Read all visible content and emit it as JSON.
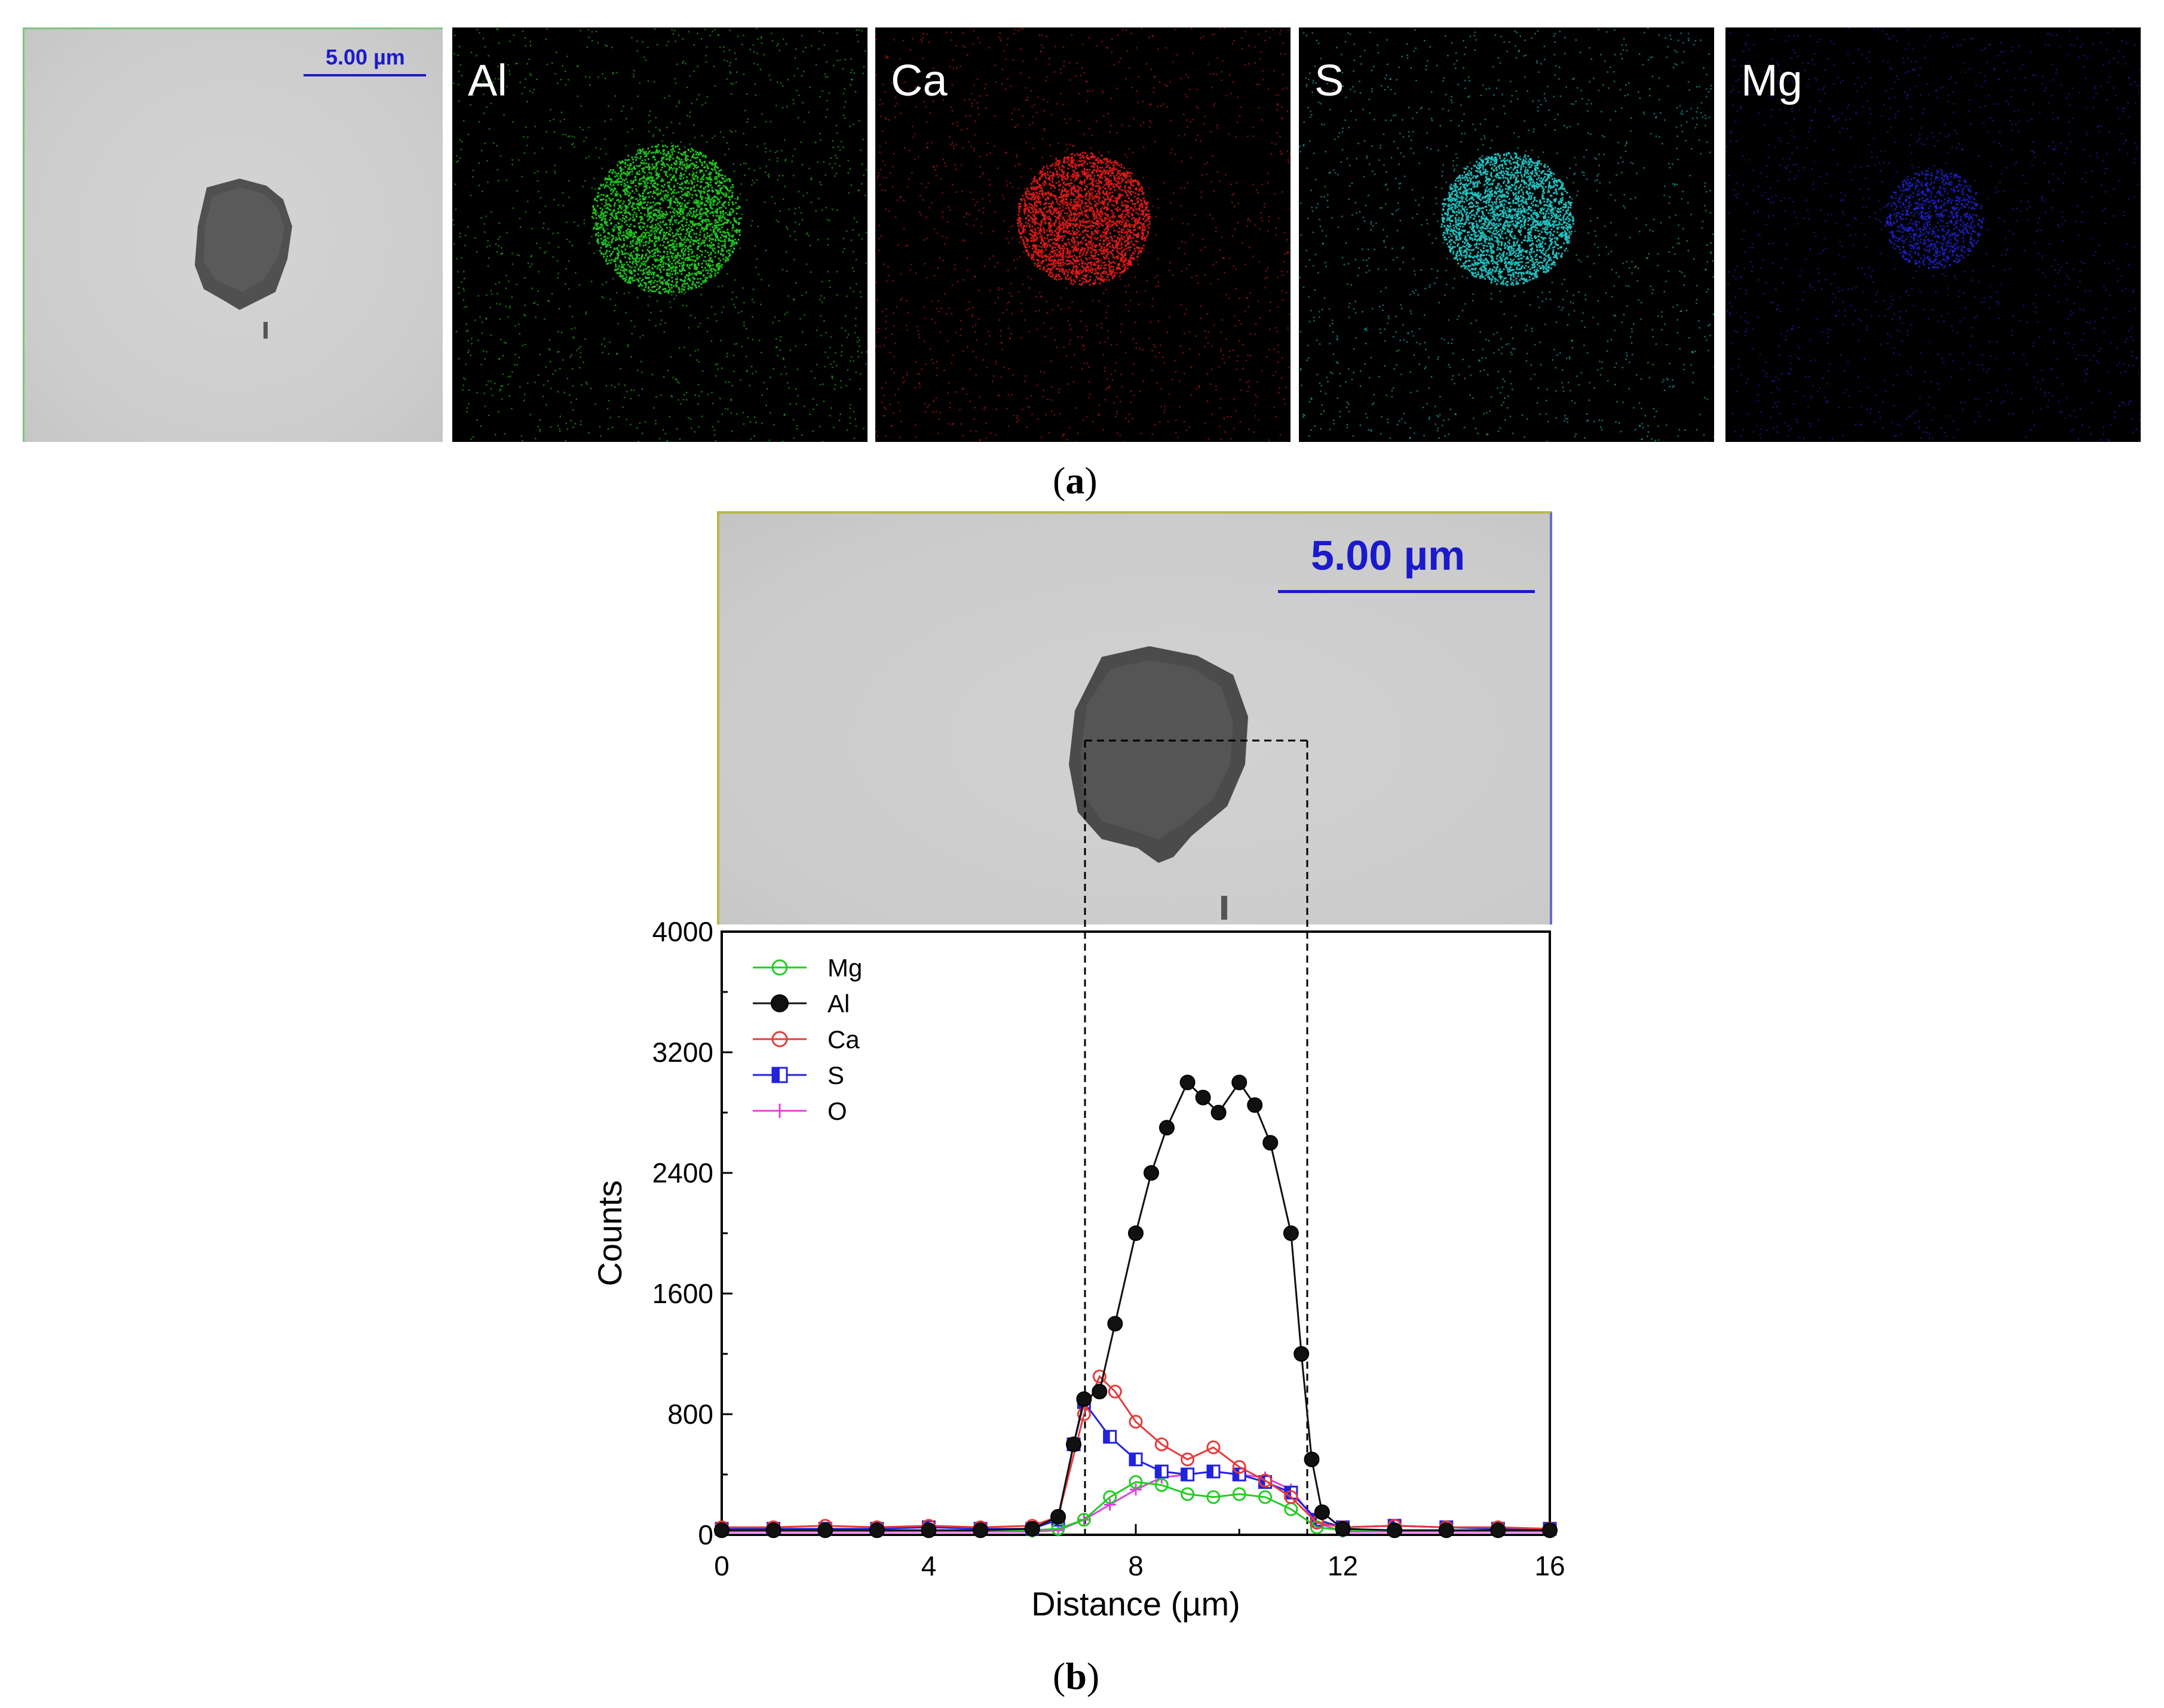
{
  "figure": {
    "panel_a": {
      "caption": "(a)",
      "caption_letter": "a",
      "scale_bar": "5.00 µm",
      "maps": [
        {
          "element": "Al",
          "color": "#22cc22",
          "spread": 0.18
        },
        {
          "element": "Ca",
          "color": "#e01a1a",
          "spread": 0.16
        },
        {
          "element": "S",
          "color": "#22c8c8",
          "spread": 0.16
        },
        {
          "element": "Mg",
          "color": "#2222dd",
          "spread": 0.12
        }
      ]
    },
    "panel_b": {
      "caption": "(b)",
      "caption_letter": "b",
      "scale_bar": "5.00 µm"
    }
  },
  "chart_data": {
    "type": "line",
    "title": "",
    "xlabel": "Distance (µm)",
    "ylabel": "Counts",
    "xlim": [
      0,
      16
    ],
    "ylim": [
      0,
      4000
    ],
    "xticks": [
      0,
      4,
      8,
      12,
      16
    ],
    "yticks": [
      0,
      800,
      1600,
      2400,
      3200,
      4000
    ],
    "legend_position": "top-left",
    "series": [
      {
        "name": "Mg",
        "color": "#22cc22",
        "marker": "open-circle",
        "x": [
          0,
          1,
          2,
          3,
          4,
          5,
          6,
          6.5,
          7,
          7.5,
          8,
          8.5,
          9,
          9.5,
          10,
          10.5,
          11,
          11.5,
          12,
          13,
          14,
          15,
          16
        ],
        "y": [
          30,
          30,
          30,
          30,
          30,
          30,
          30,
          40,
          100,
          250,
          350,
          330,
          270,
          250,
          270,
          250,
          170,
          50,
          30,
          30,
          30,
          30,
          30
        ]
      },
      {
        "name": "Al",
        "color": "#111111",
        "marker": "filled-circle",
        "x": [
          0,
          1,
          2,
          3,
          4,
          5,
          6,
          6.5,
          6.8,
          7,
          7.3,
          7.6,
          8,
          8.3,
          8.6,
          9,
          9.3,
          9.6,
          10,
          10.3,
          10.6,
          11,
          11.2,
          11.4,
          11.6,
          12,
          13,
          14,
          15,
          16
        ],
        "y": [
          30,
          30,
          30,
          30,
          30,
          30,
          40,
          120,
          600,
          900,
          950,
          1400,
          2000,
          2400,
          2700,
          3000,
          2900,
          2800,
          3000,
          2850,
          2600,
          2000,
          1200,
          500,
          150,
          40,
          30,
          30,
          30,
          30
        ]
      },
      {
        "name": "Ca",
        "color": "#e83a3a",
        "marker": "open-circle",
        "x": [
          0,
          1,
          2,
          3,
          4,
          5,
          6,
          6.5,
          7,
          7.3,
          7.6,
          8,
          8.5,
          9,
          9.5,
          10,
          10.5,
          11,
          11.5,
          12,
          13,
          14,
          15,
          16
        ],
        "y": [
          50,
          50,
          60,
          50,
          60,
          50,
          60,
          120,
          800,
          1050,
          950,
          750,
          600,
          500,
          580,
          450,
          360,
          250,
          80,
          50,
          60,
          50,
          50,
          40
        ]
      },
      {
        "name": "S",
        "color": "#2222dd",
        "marker": "half-square",
        "x": [
          0,
          1,
          2,
          3,
          4,
          5,
          6,
          6.5,
          6.8,
          7,
          7.5,
          8,
          8.5,
          9,
          9.5,
          10,
          10.5,
          11,
          11.5,
          12,
          13,
          14,
          15,
          16
        ],
        "y": [
          40,
          40,
          40,
          40,
          50,
          40,
          40,
          100,
          600,
          880,
          650,
          500,
          420,
          400,
          420,
          400,
          350,
          280,
          100,
          50,
          60,
          50,
          40,
          40
        ]
      },
      {
        "name": "O",
        "color": "#e040e0",
        "marker": "plus",
        "x": [
          0,
          1,
          2,
          3,
          4,
          5,
          6,
          6.5,
          7,
          7.5,
          8,
          8.5,
          9,
          9.5,
          10,
          10.5,
          11,
          11.5,
          12,
          13,
          14,
          15,
          16
        ],
        "y": [
          20,
          20,
          20,
          20,
          20,
          20,
          20,
          30,
          100,
          200,
          300,
          380,
          400,
          420,
          400,
          380,
          300,
          80,
          20,
          20,
          20,
          20,
          20
        ]
      }
    ]
  }
}
